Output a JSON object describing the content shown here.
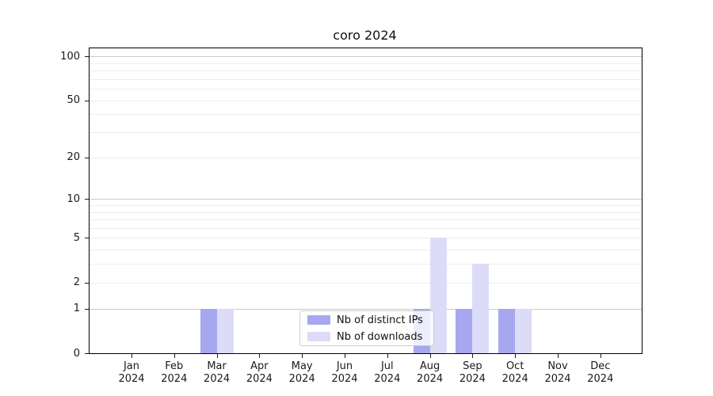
{
  "chart_data": {
    "type": "bar",
    "title": "coro 2024",
    "yscale": "log1p",
    "ylim": [
      0,
      113
    ],
    "grid": true,
    "legend_position": "inside-bottom-center",
    "yticks": [
      0,
      1,
      2,
      5,
      10,
      20,
      50,
      100
    ],
    "major_gridlines": [
      1,
      10,
      100
    ],
    "minor_gridlines": [
      2,
      3,
      4,
      5,
      6,
      7,
      8,
      9,
      20,
      30,
      40,
      50,
      60,
      70,
      80,
      90
    ],
    "categories": [
      "Jan",
      "Feb",
      "Mar",
      "Apr",
      "May",
      "Jun",
      "Jul",
      "Aug",
      "Sep",
      "Oct",
      "Nov",
      "Dec"
    ],
    "category_year": "2024",
    "series": [
      {
        "name": "Nb of distinct IPs",
        "color": "#a7a7f0",
        "values": [
          0,
          0,
          1,
          0,
          0,
          0,
          0,
          1,
          1,
          1,
          0,
          0
        ]
      },
      {
        "name": "Nb of downloads",
        "color": "#dcdcf8",
        "values": [
          0,
          0,
          1,
          0,
          0,
          0,
          0,
          5,
          3,
          1,
          0,
          0
        ]
      }
    ]
  }
}
